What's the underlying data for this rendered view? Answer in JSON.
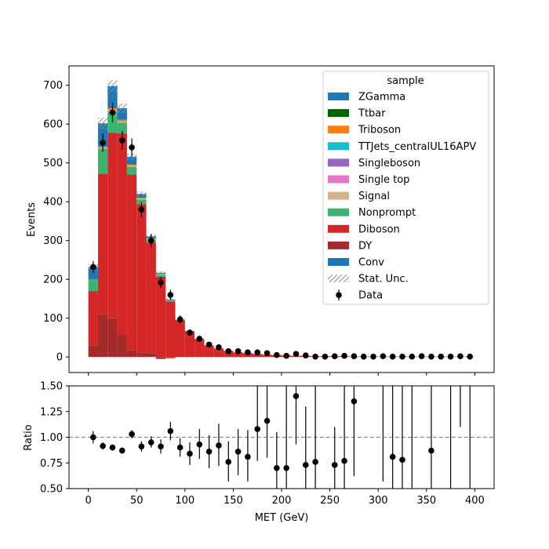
{
  "chart_data": [
    {
      "type": "bar",
      "subtype": "stacked-histogram",
      "panel": "main",
      "ylabel": "Events",
      "xlim": [
        -20,
        420
      ],
      "ylim": [
        -40,
        750
      ],
      "xticks": [
        0,
        50,
        100,
        150,
        200,
        250,
        300,
        350,
        400
      ],
      "yticks": [
        0,
        100,
        200,
        300,
        400,
        500,
        600,
        700
      ],
      "ytick_labels": [
        "0",
        "100",
        "200",
        "300",
        "400",
        "500",
        "600",
        "700"
      ],
      "bin_edges": [
        0,
        10,
        20,
        30,
        40,
        50,
        60,
        70,
        80,
        90,
        100,
        110,
        120,
        130,
        140,
        150,
        160,
        170,
        180,
        190,
        200,
        210,
        220,
        230,
        240,
        250,
        260,
        270,
        280,
        290,
        300,
        310,
        320,
        330,
        340,
        350,
        360,
        370,
        380,
        390,
        400
      ],
      "legend_title": "sample",
      "legend_placement": "top-right",
      "stack_order_bottom_to_top": [
        "DY",
        "Diboson",
        "Nonprompt",
        "Signal",
        "Single top",
        "Singleboson",
        "TTJets_centralUL16APV",
        "Triboson",
        "Ttbar",
        "ZGamma",
        "Conv"
      ],
      "series": [
        {
          "name": "DY",
          "color": "#a52a2a",
          "values": [
            30,
            110,
            100,
            58,
            18,
            12,
            10,
            -5,
            -3,
            0,
            0,
            0,
            0,
            0,
            0,
            0,
            0,
            0,
            0,
            0,
            0,
            0,
            0,
            0,
            0,
            0,
            0,
            0,
            0,
            0,
            0,
            0,
            0,
            0,
            0,
            0,
            0,
            0,
            0,
            0
          ]
        },
        {
          "name": "Diboson",
          "color": "#d62728",
          "values": [
            140,
            362,
            478,
            518,
            452,
            382,
            285,
            207,
            143,
            95,
            66,
            46,
            30,
            22,
            16,
            12,
            10,
            8,
            6,
            5,
            4,
            3,
            3,
            2,
            2,
            2,
            2,
            1,
            1,
            1,
            1,
            1,
            1,
            1,
            1,
            1,
            1,
            1,
            1,
            0.5
          ]
        },
        {
          "name": "Nonprompt",
          "color": "#3cb371",
          "values": [
            30,
            65,
            55,
            28,
            20,
            12,
            8,
            5,
            2,
            1,
            1,
            1,
            0,
            0,
            0,
            0,
            0,
            0,
            0,
            0,
            0,
            0,
            0,
            0,
            0,
            0,
            0,
            0,
            0,
            0,
            0,
            0,
            0,
            0,
            0,
            0,
            0,
            0,
            0,
            0
          ]
        },
        {
          "name": "Signal",
          "color": "#d2b48c",
          "values": [
            0,
            2,
            3,
            3,
            3,
            2,
            1,
            1,
            1,
            0,
            0,
            0,
            0,
            0,
            0,
            0,
            0,
            0,
            0,
            0,
            0,
            0,
            0,
            0,
            0,
            0,
            0,
            0,
            0,
            0,
            0,
            0,
            0,
            0,
            0,
            0,
            0,
            0,
            0,
            0
          ]
        },
        {
          "name": "Single top",
          "color": "#e377c2",
          "values": [
            0,
            0,
            0,
            0,
            0,
            0,
            0,
            0,
            0,
            0,
            0,
            0,
            0,
            0,
            0,
            0,
            0,
            0,
            0,
            0,
            0,
            0,
            0,
            0,
            0,
            0,
            0,
            0,
            0,
            0,
            0,
            0,
            0,
            0,
            0,
            0,
            0,
            0,
            0,
            0
          ]
        },
        {
          "name": "Singleboson",
          "color": "#9467bd",
          "values": [
            0,
            0,
            0,
            0,
            0,
            0,
            0,
            0,
            0,
            0,
            0,
            0,
            0,
            0,
            0,
            0,
            0,
            0,
            0,
            0,
            0,
            0,
            0,
            0,
            0,
            0,
            0,
            0,
            0,
            0,
            0,
            0,
            0,
            0,
            0,
            0,
            0,
            0,
            0,
            0
          ]
        },
        {
          "name": "TTJets_centralUL16APV",
          "color": "#17becf",
          "values": [
            0,
            0,
            0,
            0,
            0,
            0,
            0,
            0,
            0,
            0,
            0,
            0,
            0,
            0,
            0,
            0,
            0,
            0,
            0,
            0,
            0,
            0,
            0,
            0,
            0,
            0,
            0,
            0,
            0,
            0,
            0,
            0,
            0,
            0,
            0,
            0,
            0,
            0,
            0,
            0
          ]
        },
        {
          "name": "Triboson",
          "color": "#ff7f0e",
          "values": [
            0,
            3,
            5,
            4,
            3,
            2,
            1,
            1,
            0,
            0,
            0,
            0,
            0,
            0,
            0,
            0,
            0,
            0,
            0,
            0,
            0,
            0,
            0,
            0,
            0,
            0,
            0,
            0,
            0,
            0,
            0,
            0,
            0,
            0,
            0,
            0,
            0,
            0,
            0,
            0
          ]
        },
        {
          "name": "Ttbar",
          "color": "#006400",
          "values": [
            0,
            0,
            0,
            0,
            0,
            0,
            0,
            0,
            0,
            0,
            0,
            0,
            0,
            0,
            0,
            0,
            0,
            0,
            0,
            0,
            0,
            0,
            0,
            0,
            0,
            0,
            0,
            0,
            0,
            0,
            0,
            0,
            0,
            0,
            0,
            0,
            0,
            0,
            0,
            0
          ]
        },
        {
          "name": "ZGamma",
          "color": "#1f77b4",
          "values": [
            0,
            0,
            0,
            0,
            0,
            0,
            0,
            0,
            0,
            0,
            0,
            0,
            0,
            0,
            0,
            0,
            0,
            0,
            0,
            0,
            0,
            0,
            0,
            0,
            0,
            0,
            0,
            0,
            0,
            0,
            0,
            0,
            0,
            0,
            0,
            0,
            0,
            0,
            0,
            0
          ]
        },
        {
          "name": "Conv",
          "color": "#1f77b4",
          "values": [
            32,
            60,
            57,
            30,
            20,
            10,
            6,
            3,
            2,
            0,
            0,
            0,
            0,
            0,
            0,
            0,
            0,
            0,
            0,
            0,
            0,
            0,
            0,
            0,
            0,
            0,
            0,
            0,
            0,
            0,
            0,
            0,
            0,
            0,
            0,
            0,
            0,
            0,
            0,
            0
          ]
        }
      ],
      "stat_unc": {
        "name": "Stat. Unc.",
        "values": [
          8,
          15,
          15,
          12,
          8,
          6,
          5,
          4,
          3,
          2,
          1,
          1,
          1,
          1,
          1,
          1,
          1,
          1,
          1,
          1,
          1,
          1,
          1,
          1,
          1,
          1,
          1,
          1,
          1,
          1,
          1,
          1,
          1,
          1,
          1,
          1,
          1,
          1,
          1,
          1
        ]
      },
      "data": {
        "name": "Data",
        "x": [
          5,
          15,
          25,
          35,
          45,
          55,
          65,
          75,
          85,
          95,
          105,
          115,
          125,
          135,
          145,
          155,
          165,
          175,
          185,
          195,
          205,
          215,
          225,
          235,
          245,
          255,
          265,
          275,
          285,
          295,
          305,
          315,
          325,
          335,
          345,
          355,
          365,
          375,
          385,
          395
        ],
        "y": [
          232,
          552,
          630,
          558,
          540,
          380,
          300,
          192,
          160,
          97,
          63,
          47,
          32,
          25,
          15,
          15,
          12,
          12,
          10,
          5,
          3,
          8,
          4,
          1,
          1,
          2,
          3,
          2,
          1,
          1,
          2,
          1,
          1,
          1,
          2,
          1,
          1,
          1,
          2,
          1
        ],
        "yerr": [
          15,
          23,
          25,
          24,
          23,
          19,
          17,
          14,
          13,
          10,
          8,
          7,
          6,
          5,
          4,
          4,
          3,
          3,
          3,
          2,
          2,
          3,
          2,
          1,
          1,
          1,
          2,
          1,
          1,
          1,
          1,
          1,
          1,
          1,
          1,
          1,
          1,
          1,
          1,
          1
        ]
      },
      "legend_entries": [
        "ZGamma",
        "Ttbar",
        "Triboson",
        "TTJets_centralUL16APV",
        "Singleboson",
        "Single top",
        "Signal",
        "Nonprompt",
        "Diboson",
        "DY",
        "Conv",
        "Stat. Unc.",
        "Data"
      ]
    },
    {
      "type": "scatter",
      "panel": "ratio",
      "xlabel": "MET (GeV)",
      "ylabel": "Ratio",
      "xlim": [
        -20,
        420
      ],
      "ylim": [
        0.5,
        1.5
      ],
      "xticks": [
        0,
        50,
        100,
        150,
        200,
        250,
        300,
        350,
        400
      ],
      "xtick_labels": [
        "0",
        "50",
        "100",
        "150",
        "200",
        "250",
        "300",
        "350",
        "400"
      ],
      "yticks": [
        0.5,
        0.75,
        1.0,
        1.25,
        1.5
      ],
      "ytick_labels": [
        "0.50",
        "0.75",
        "1.00",
        "1.25",
        "1.50"
      ],
      "reference_line": 1.0,
      "points": [
        {
          "x": 5,
          "y": 1.0,
          "lo": 0.94,
          "hi": 1.06
        },
        {
          "x": 15,
          "y": 0.915,
          "lo": 0.88,
          "hi": 0.95
        },
        {
          "x": 25,
          "y": 0.9,
          "lo": 0.87,
          "hi": 0.93
        },
        {
          "x": 35,
          "y": 0.87,
          "lo": 0.84,
          "hi": 0.9
        },
        {
          "x": 45,
          "y": 1.03,
          "lo": 0.99,
          "hi": 1.07
        },
        {
          "x": 55,
          "y": 0.91,
          "lo": 0.86,
          "hi": 0.96
        },
        {
          "x": 65,
          "y": 0.95,
          "lo": 0.9,
          "hi": 1.01
        },
        {
          "x": 75,
          "y": 0.91,
          "lo": 0.84,
          "hi": 0.98
        },
        {
          "x": 85,
          "y": 1.06,
          "lo": 0.97,
          "hi": 1.15
        },
        {
          "x": 95,
          "y": 0.9,
          "lo": 0.81,
          "hi": 0.99
        },
        {
          "x": 105,
          "y": 0.84,
          "lo": 0.73,
          "hi": 0.95
        },
        {
          "x": 115,
          "y": 0.93,
          "lo": 0.79,
          "hi": 1.08
        },
        {
          "x": 125,
          "y": 0.86,
          "lo": 0.7,
          "hi": 1.02
        },
        {
          "x": 135,
          "y": 0.92,
          "lo": 0.72,
          "hi": 1.13
        },
        {
          "x": 145,
          "y": 0.76,
          "lo": 0.57,
          "hi": 0.96
        },
        {
          "x": 155,
          "y": 0.86,
          "lo": 0.63,
          "hi": 1.08
        },
        {
          "x": 165,
          "y": 0.81,
          "lo": 0.57,
          "hi": 1.07
        },
        {
          "x": 175,
          "y": 1.08,
          "lo": 0.77,
          "hi": 1.5
        },
        {
          "x": 185,
          "y": 1.16,
          "lo": 0.8,
          "hi": 1.5
        },
        {
          "x": 195,
          "y": 0.7,
          "lo": 0.4,
          "hi": 1.05
        },
        {
          "x": 205,
          "y": 0.7,
          "lo": 0.35,
          "hi": 1.5
        },
        {
          "x": 215,
          "y": 1.4,
          "lo": 0.93,
          "hi": 1.5
        },
        {
          "x": 225,
          "y": 0.73,
          "lo": 0.4,
          "hi": 1.3
        },
        {
          "x": 235,
          "y": 0.76,
          "lo": 0.4,
          "hi": 1.5
        },
        {
          "x": 255,
          "y": 0.73,
          "lo": 0.4,
          "hi": 1.1
        },
        {
          "x": 265,
          "y": 0.77,
          "lo": 0.4,
          "hi": 1.5
        },
        {
          "x": 275,
          "y": 1.35,
          "lo": 0.62,
          "hi": 1.5
        },
        {
          "x": 305,
          "y": null,
          "lo": 0.57,
          "hi": 1.5
        },
        {
          "x": 315,
          "y": 0.81,
          "lo": 0.4,
          "hi": 1.5
        },
        {
          "x": 325,
          "y": 0.78,
          "lo": 0.4,
          "hi": 1.5
        },
        {
          "x": 335,
          "y": null,
          "lo": 0.5,
          "hi": 1.5
        },
        {
          "x": 355,
          "y": 0.87,
          "lo": 0.4,
          "hi": 1.5
        },
        {
          "x": 375,
          "y": null,
          "lo": 0.5,
          "hi": 1.5
        },
        {
          "x": 385,
          "y": null,
          "lo": 1.1,
          "hi": 1.5
        },
        {
          "x": 395,
          "y": null,
          "lo": 0.5,
          "hi": 1.5
        }
      ]
    }
  ]
}
